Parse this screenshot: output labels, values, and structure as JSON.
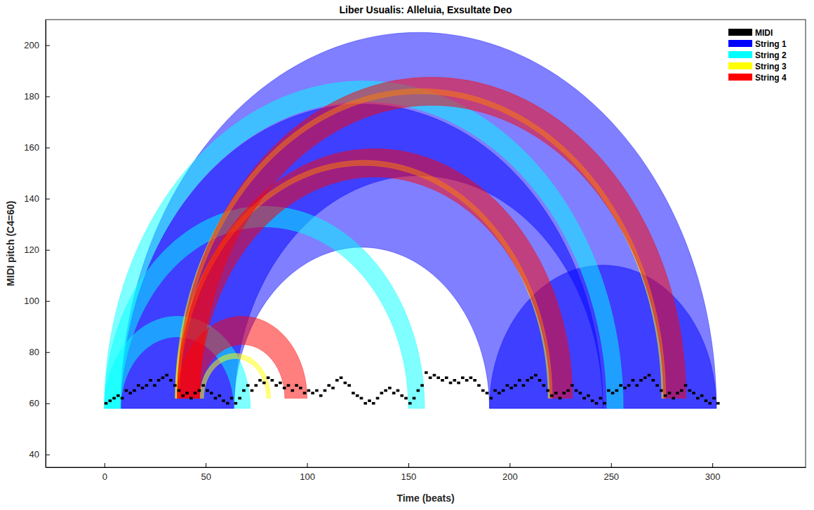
{
  "chart_data": {
    "type": "arc",
    "title": "Liber Usualis: Alleluia, Exsultate Deo",
    "x_label": "Time (beats)",
    "y_label": "MIDI pitch (C4=60)",
    "xlim": [
      -29,
      346
    ],
    "ylim": [
      35,
      210
    ],
    "xticks": [
      0,
      50,
      100,
      150,
      200,
      250,
      300
    ],
    "yticks": [
      40,
      60,
      80,
      100,
      120,
      140,
      160,
      180,
      200
    ],
    "legend": "northeast",
    "series": [
      {
        "name": "MIDI",
        "color": "#000000",
        "type": "scatter",
        "marker": "dash",
        "x": [
          0,
          2,
          4,
          6,
          8,
          10,
          12,
          14,
          16,
          18,
          20,
          22,
          24,
          26,
          28,
          30,
          32,
          34,
          36,
          38,
          40,
          42,
          44,
          46,
          48,
          50,
          52,
          54,
          56,
          58,
          60,
          62,
          64,
          66,
          68,
          70,
          72,
          74,
          76,
          78,
          80,
          82,
          84,
          86,
          88,
          90,
          92,
          94,
          96,
          98,
          100,
          102,
          104,
          106,
          108,
          110,
          112,
          114,
          116,
          118,
          120,
          122,
          124,
          126,
          128,
          130,
          132,
          134,
          136,
          138,
          140,
          142,
          144,
          146,
          148,
          150,
          152,
          154,
          156,
          158,
          160,
          162,
          164,
          166,
          168,
          170,
          172,
          174,
          176,
          178,
          180,
          182,
          184,
          186,
          188,
          190,
          192,
          194,
          196,
          198,
          200,
          202,
          204,
          206,
          208,
          210,
          212,
          214,
          216,
          218,
          220,
          222,
          224,
          226,
          228,
          230,
          232,
          234,
          236,
          238,
          240,
          242,
          244,
          246,
          248,
          250,
          252,
          254,
          256,
          258,
          260,
          262,
          264,
          266,
          268,
          270,
          272,
          274,
          276,
          278,
          280,
          282,
          284,
          286,
          288,
          290,
          292,
          294,
          296,
          298,
          300,
          302
        ],
        "values": [
          60,
          61,
          62,
          63,
          62,
          65,
          64,
          65,
          67,
          66,
          67,
          69,
          67,
          69,
          70,
          71,
          69,
          67,
          65,
          63,
          64,
          62,
          64,
          65,
          67,
          65,
          64,
          62,
          63,
          61,
          60,
          62,
          60,
          62,
          65,
          67,
          65,
          67,
          69,
          68,
          70,
          69,
          67,
          68,
          66,
          67,
          65,
          67,
          66,
          64,
          65,
          64,
          65,
          63,
          65,
          67,
          66,
          69,
          70,
          68,
          67,
          64,
          63,
          62,
          60,
          61,
          60,
          62,
          64,
          65,
          66,
          64,
          65,
          63,
          62,
          60,
          62,
          65,
          67,
          72,
          70,
          71,
          70,
          69,
          70,
          68,
          69,
          68,
          70,
          69,
          70,
          69,
          67,
          65,
          64,
          62,
          65,
          64,
          65,
          67,
          66,
          67,
          69,
          67,
          69,
          70,
          71,
          69,
          67,
          65,
          63,
          64,
          62,
          64,
          65,
          67,
          65,
          64,
          62,
          63,
          61,
          60,
          62,
          60,
          65,
          64,
          65,
          67,
          66,
          67,
          69,
          67,
          69,
          70,
          71,
          69,
          67,
          65,
          63,
          64,
          62,
          64,
          65,
          67,
          65,
          64,
          62,
          63,
          61,
          60,
          62,
          60
        ]
      },
      {
        "name": "String 1",
        "color": "#0000ff",
        "type": "arc",
        "base": 58,
        "arcs": [
          {
            "from": [
              8,
              64
            ],
            "to": [
              190,
              246
            ]
          },
          {
            "from": [
              8,
              64
            ],
            "to": [
              246,
              302
            ]
          },
          {
            "from": [
              190,
              246
            ],
            "to": [
              246,
              302
            ]
          }
        ]
      },
      {
        "name": "String 2",
        "color": "#00ffff",
        "type": "arc",
        "base": 58,
        "arcs": [
          {
            "from": [
              0,
              8
            ],
            "to": [
              64,
              72
            ]
          },
          {
            "from": [
              0,
              8
            ],
            "to": [
              150,
              158
            ]
          },
          {
            "from": [
              0,
              8
            ],
            "to": [
              248,
              256
            ]
          }
        ]
      },
      {
        "name": "String 3",
        "color": "#ffff00",
        "type": "arc",
        "base": 62,
        "arcs": [
          {
            "from": [
              35,
              37
            ],
            "to": [
              219,
              221
            ]
          },
          {
            "from": [
              35,
              37
            ],
            "to": [
              275,
              277
            ]
          },
          {
            "from": [
              47,
              49
            ],
            "to": [
              80,
              82
            ]
          }
        ]
      },
      {
        "name": "String 4",
        "color": "#ff0000",
        "type": "arc",
        "base": 62,
        "arcs": [
          {
            "from": [
              36,
              47
            ],
            "to": [
              89,
              100
            ]
          },
          {
            "from": [
              36,
              47
            ],
            "to": [
              220,
              231
            ]
          },
          {
            "from": [
              36,
              47
            ],
            "to": [
              276,
              287
            ]
          }
        ]
      }
    ]
  }
}
